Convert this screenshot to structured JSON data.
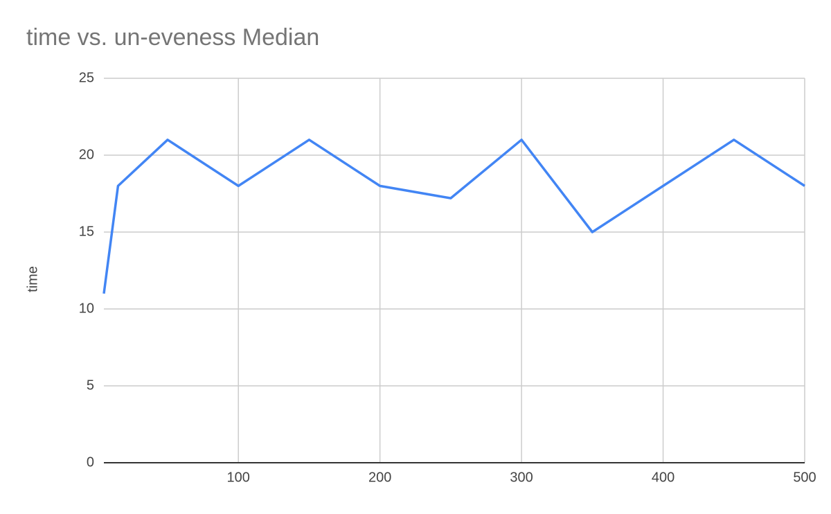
{
  "chart_data": {
    "type": "line",
    "title": "time vs. un-eveness Median",
    "y_label": "time",
    "x": [
      5,
      15,
      50,
      100,
      150,
      200,
      250,
      300,
      350,
      400,
      450,
      500
    ],
    "series": [
      {
        "name": "time",
        "color": "#4285f4",
        "values": [
          11,
          18,
          21,
          18,
          21,
          18,
          17.2,
          21,
          15,
          18,
          21,
          18
        ]
      }
    ],
    "xlim": [
      5,
      500
    ],
    "xticks": [
      100,
      200,
      300,
      400,
      500
    ],
    "ylim": [
      0,
      25
    ],
    "yticks": [
      0,
      5,
      10,
      15,
      20,
      25
    ],
    "grid": true
  }
}
